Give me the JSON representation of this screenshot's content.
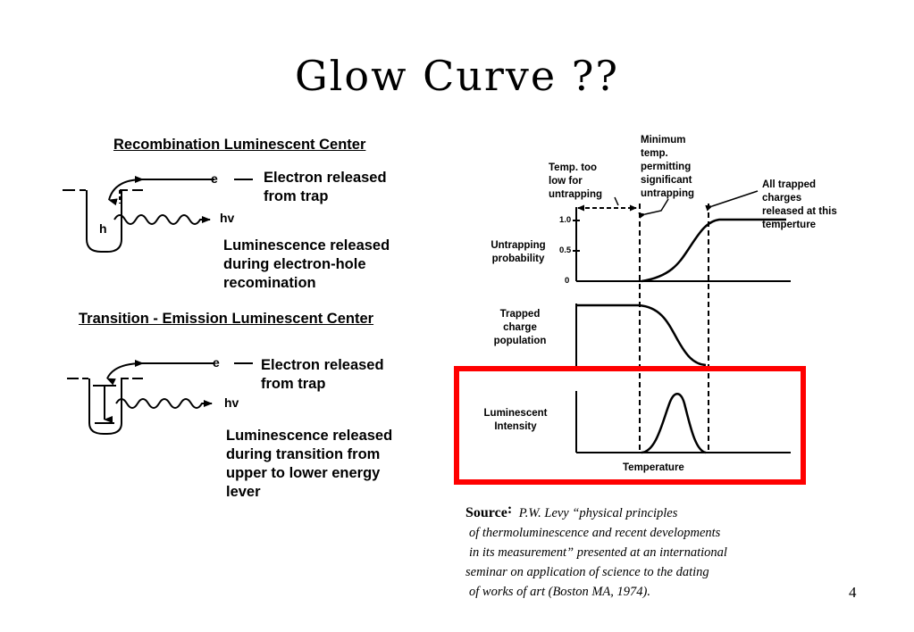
{
  "title": "Glow Curve ??",
  "left": {
    "recombination": {
      "heading": "Recombination Luminescent Center",
      "electron_symbol": "e",
      "photon_symbol": "hv",
      "hole_symbol": "h",
      "electron_label": "Electron released\nfrom trap",
      "emission_label": "Luminescence released\nduring electron-hole\nrecomination"
    },
    "transition": {
      "heading": "Transition - Emission Luminescent Center",
      "electron_symbol": "e",
      "photon_symbol": "hv",
      "electron_label": "Electron released\nfrom trap",
      "emission_label": "Luminescence released\nduring transition from\nupper to lower energy\nlever"
    }
  },
  "right": {
    "annotations": {
      "too_low": "Temp. too\nlow for\nuntrapping",
      "minimum": "Minimum\ntemp.\npermitting\nsignificant\nuntrapping",
      "all_released": "All trapped\ncharges\nreleased at this\ntemperture"
    },
    "panels": {
      "untrapping": {
        "ylabel": "Untrapping\nprobability",
        "ticks": [
          "1.0",
          "0.5",
          "0"
        ]
      },
      "trapped": {
        "ylabel": "Trapped\ncharge\npopulation"
      },
      "luminescent": {
        "ylabel": "Luminescent\nIntensity"
      }
    },
    "xlabel": "Temperature",
    "highlight_color": "#ff0000"
  },
  "source": {
    "label": "Source",
    "colon": ":",
    "lines": [
      "P.W. Levy “physical principles",
      "of thermoluminescence and recent developments",
      "in its measurement”  presented at an international",
      "seminar on application of science to the dating",
      "of works of art (Boston MA, 1974)."
    ]
  },
  "page_number": "4"
}
